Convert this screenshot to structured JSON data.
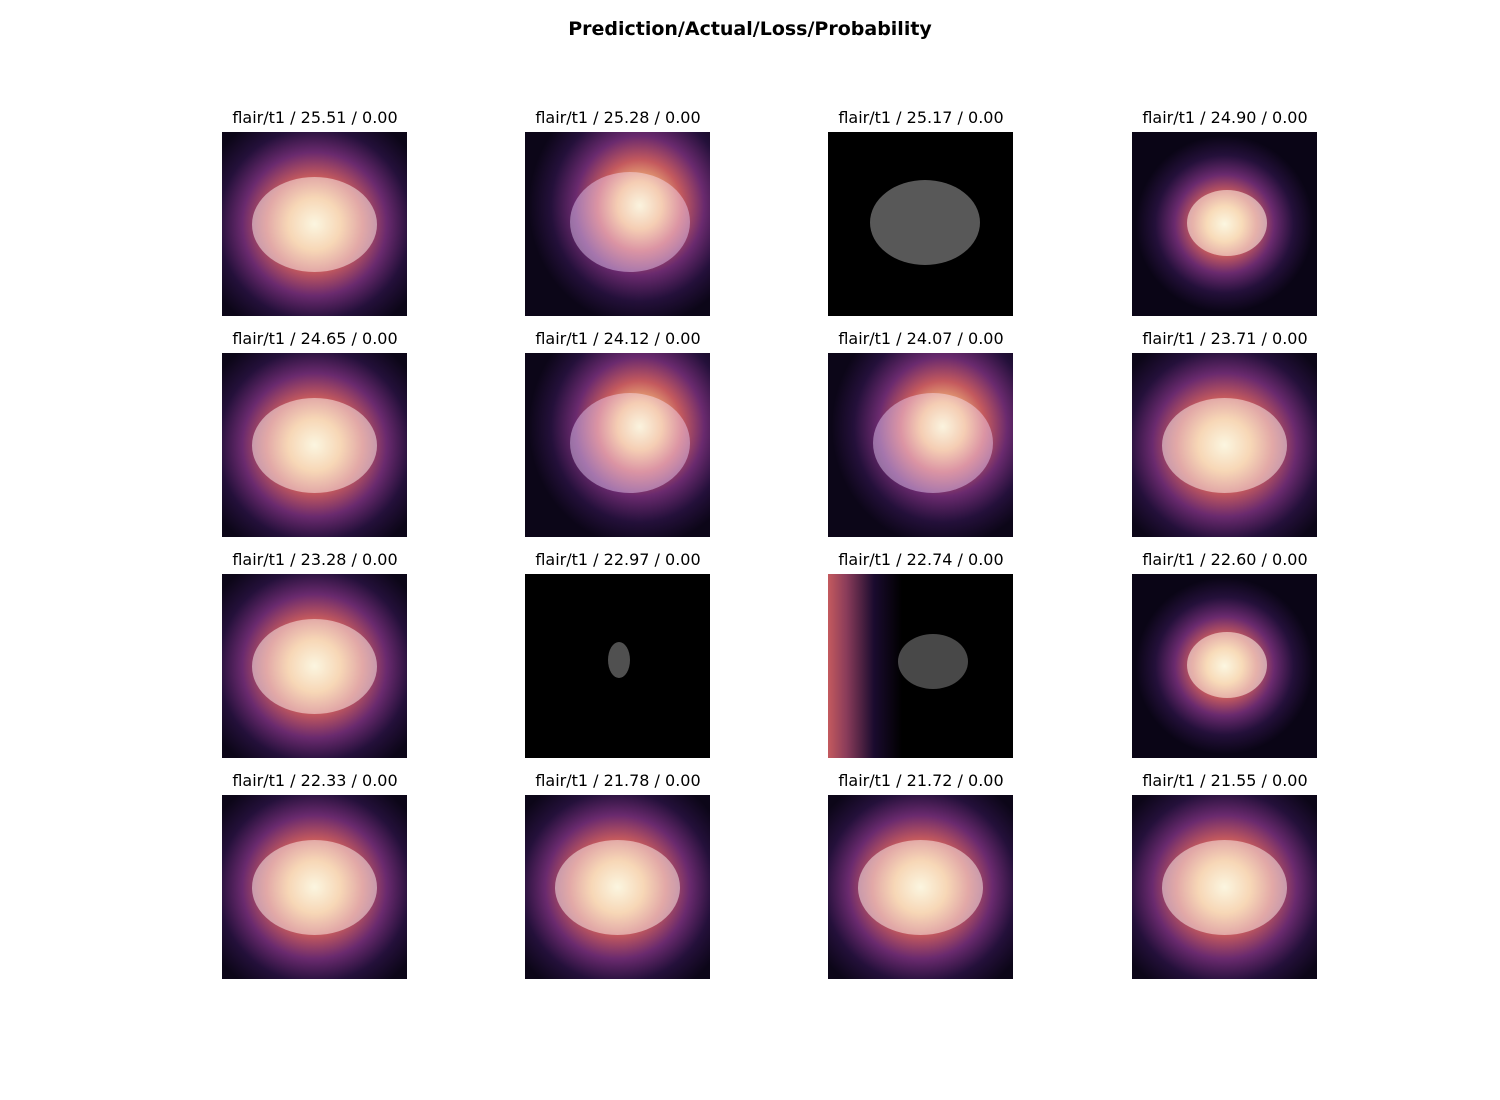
{
  "figure": {
    "title": "Prediction/Actual/Loss/Probability"
  },
  "panels": [
    {
      "label": "flair/t1 / 25.51 / 0.00",
      "style": "heat-center"
    },
    {
      "label": "flair/t1 / 25.28 / 0.00",
      "style": "heat-right"
    },
    {
      "label": "flair/t1 / 25.17 / 0.00",
      "style": "no-heat"
    },
    {
      "label": "flair/t1 / 24.90 / 0.00",
      "style": "heat-small"
    },
    {
      "label": "flair/t1 / 24.65 / 0.00",
      "style": "heat-center"
    },
    {
      "label": "flair/t1 / 24.12 / 0.00",
      "style": "heat-right"
    },
    {
      "label": "flair/t1 / 24.07 / 0.00",
      "style": "heat-right"
    },
    {
      "label": "flair/t1 / 23.71 / 0.00",
      "style": "heat-center"
    },
    {
      "label": "flair/t1 / 23.28 / 0.00",
      "style": "heat-center"
    },
    {
      "label": "flair/t1 / 22.97 / 0.00",
      "style": "no-heat-tiny"
    },
    {
      "label": "flair/t1 / 22.74 / 0.00",
      "style": "heat-left-edge"
    },
    {
      "label": "flair/t1 / 22.60 / 0.00",
      "style": "heat-small"
    },
    {
      "label": "flair/t1 / 22.33 / 0.00",
      "style": "heat-center"
    },
    {
      "label": "flair/t1 / 21.78 / 0.00",
      "style": "heat-center"
    },
    {
      "label": "flair/t1 / 21.72 / 0.00",
      "style": "heat-center"
    },
    {
      "label": "flair/t1 / 21.55 / 0.00",
      "style": "heat-center"
    }
  ],
  "colors": {
    "heat_core": "#f7edc6",
    "heat_mid": "#e8905a",
    "heat_outer": "#6a2a6e",
    "heat_edge": "#1a0b2e",
    "background": "#000000"
  }
}
